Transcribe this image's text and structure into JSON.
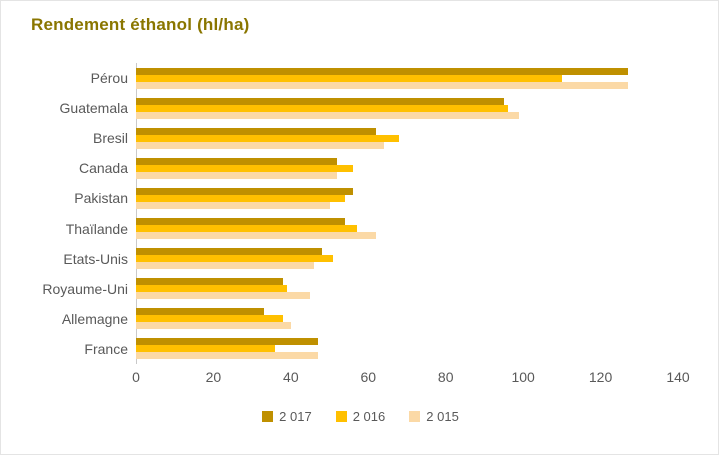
{
  "title": "Rendement éthanol (hl/ha)",
  "colors": {
    "title_text": "#8A7600",
    "axis_text": "#595959",
    "axis_line": "#C9C9C9",
    "series_2017": "#BF9000",
    "series_2016": "#FFC000",
    "series_2015": "#FBD9A6"
  },
  "chart_data": {
    "type": "bar",
    "orientation": "horizontal",
    "title": "Rendement éthanol (hl/ha)",
    "categories": [
      "Pérou",
      "Guatemala",
      "Bresil",
      "Canada",
      "Pakistan",
      "Thaïlande",
      "Etats-Unis",
      "Royaume-Uni",
      "Allemagne",
      "France"
    ],
    "series": [
      {
        "name": "2 017",
        "color": "#BF9000",
        "values": [
          127,
          95,
          62,
          52,
          56,
          54,
          48,
          38,
          33,
          47
        ]
      },
      {
        "name": "2 016",
        "color": "#FFC000",
        "values": [
          110,
          96,
          68,
          56,
          54,
          57,
          51,
          39,
          38,
          36
        ]
      },
      {
        "name": "2 015",
        "color": "#FBD9A6",
        "values": [
          127,
          99,
          64,
          52,
          50,
          62,
          46,
          45,
          40,
          47
        ]
      }
    ],
    "xlabel": "",
    "ylabel": "",
    "xlim": [
      0,
      140
    ],
    "x_ticks": [
      0,
      20,
      40,
      60,
      80,
      100,
      120,
      140
    ],
    "grid": false,
    "legend_position": "bottom"
  }
}
